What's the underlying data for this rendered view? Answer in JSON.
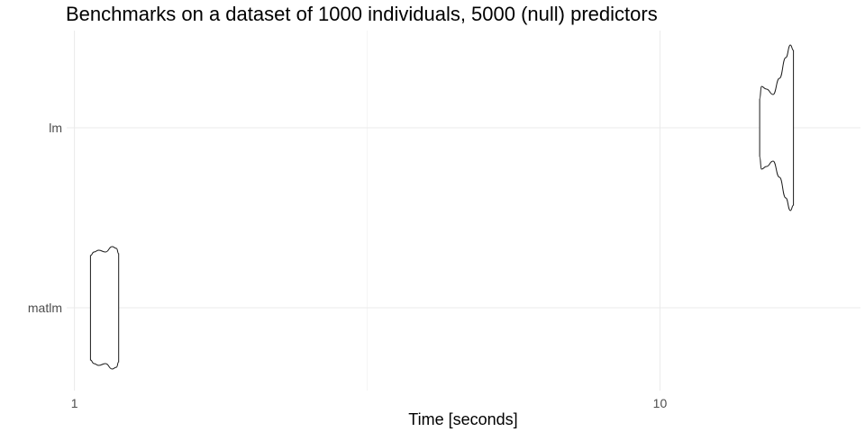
{
  "chart_data": {
    "type": "violin",
    "title": "Benchmarks on a dataset of 1000 individuals, 5000 (null) predictors",
    "xlabel": "Time [seconds]",
    "ylabel": "",
    "x_scale": "log10",
    "xlim": [
      0.97,
      22
    ],
    "x_ticks": [
      {
        "value": 1,
        "label": "1"
      },
      {
        "value": 10,
        "label": "10"
      }
    ],
    "x_minor_ticks": [
      3.1623
    ],
    "categories": [
      "lm",
      "matlm"
    ],
    "grid": true,
    "series": [
      {
        "name": "lm",
        "min": 14.8,
        "max": 16.9,
        "profile": [
          {
            "x": 14.8,
            "density": 0.32
          },
          {
            "x": 14.9,
            "density": 0.46
          },
          {
            "x": 15.2,
            "density": 0.43
          },
          {
            "x": 15.6,
            "density": 0.37
          },
          {
            "x": 16.0,
            "density": 0.55
          },
          {
            "x": 16.4,
            "density": 0.78
          },
          {
            "x": 16.7,
            "density": 0.92
          },
          {
            "x": 16.9,
            "density": 0.86
          }
        ]
      },
      {
        "name": "matlm",
        "min": 1.065,
        "max": 1.19,
        "profile": [
          {
            "x": 1.065,
            "density": 0.58
          },
          {
            "x": 1.08,
            "density": 0.62
          },
          {
            "x": 1.1,
            "density": 0.64
          },
          {
            "x": 1.13,
            "density": 0.62
          },
          {
            "x": 1.16,
            "density": 0.68
          },
          {
            "x": 1.18,
            "density": 0.66
          },
          {
            "x": 1.19,
            "density": 0.6
          }
        ]
      }
    ]
  }
}
